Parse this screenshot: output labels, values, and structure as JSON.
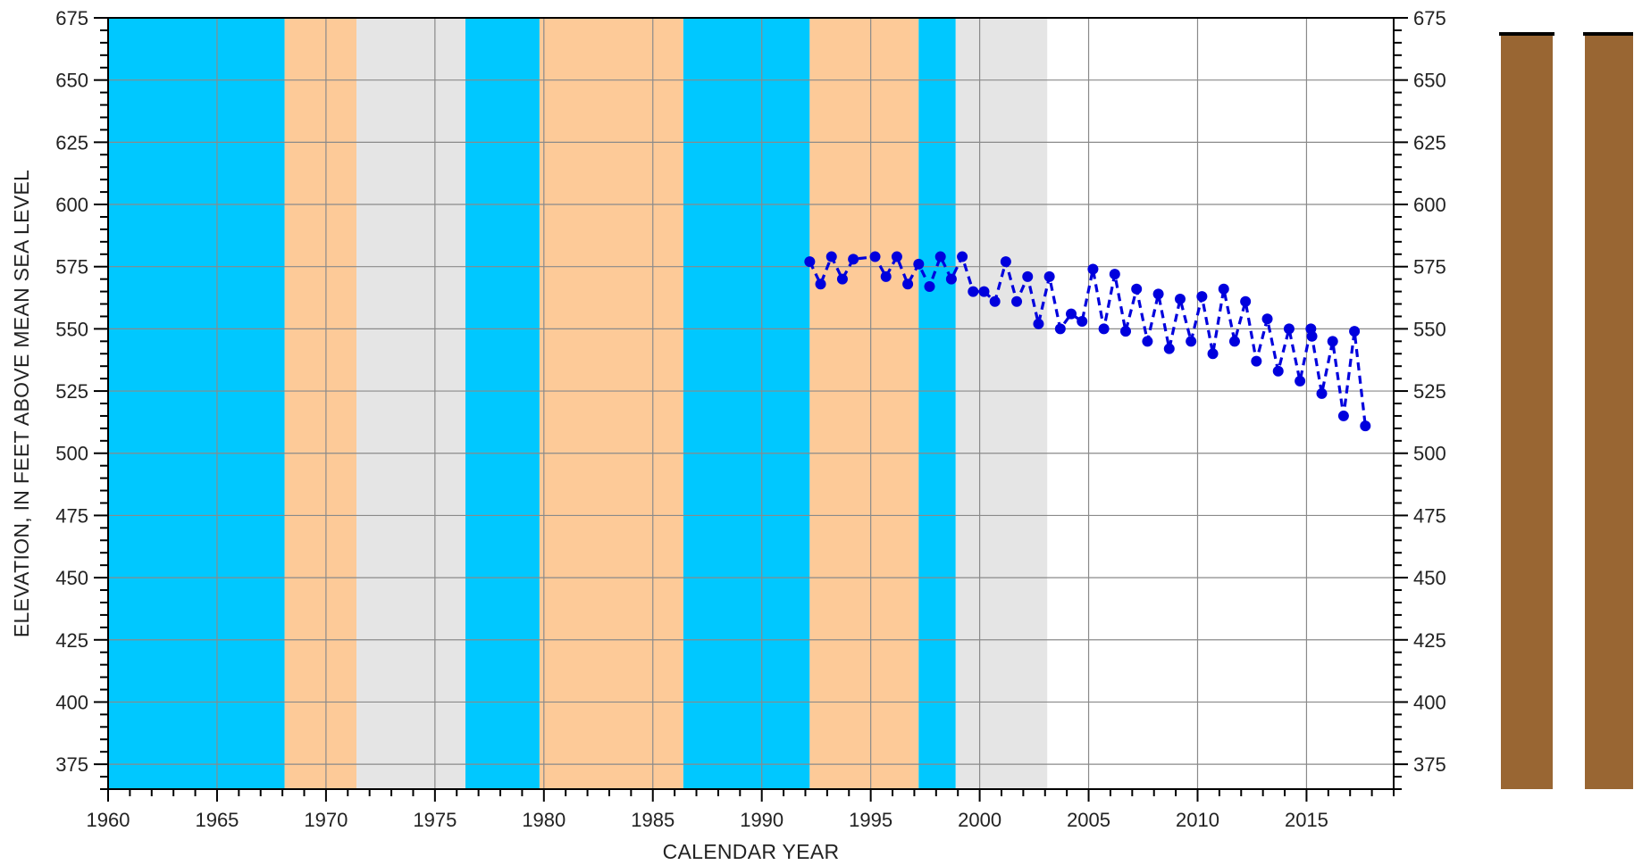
{
  "chart_data": {
    "type": "line",
    "title": "",
    "xlabel": "CALENDAR YEAR",
    "ylabel": "ELEVATION, IN FEET ABOVE MEAN SEA LEVEL",
    "xlim": [
      1960,
      2019
    ],
    "ylim": [
      365,
      675
    ],
    "x_ticks": [
      1960,
      1965,
      1970,
      1975,
      1980,
      1985,
      1990,
      1995,
      2000,
      2005,
      2010,
      2015
    ],
    "y_ticks": [
      375,
      400,
      425,
      450,
      475,
      500,
      525,
      550,
      575,
      600,
      625,
      650,
      675
    ],
    "grid": true,
    "right_axis_mirrors_left": true,
    "background_bands": [
      {
        "start": 1960.0,
        "end": 1968.1,
        "color": "#00c8ff"
      },
      {
        "start": 1968.1,
        "end": 1971.4,
        "color": "#fdca98"
      },
      {
        "start": 1971.4,
        "end": 1976.4,
        "color": "#e5e5e5"
      },
      {
        "start": 1976.4,
        "end": 1979.8,
        "color": "#00c8ff"
      },
      {
        "start": 1979.8,
        "end": 1986.4,
        "color": "#fdca98"
      },
      {
        "start": 1986.4,
        "end": 1992.2,
        "color": "#00c8ff"
      },
      {
        "start": 1992.2,
        "end": 1997.2,
        "color": "#fdca98"
      },
      {
        "start": 1997.2,
        "end": 1998.9,
        "color": "#00c8ff"
      },
      {
        "start": 1998.9,
        "end": 2003.1,
        "color": "#e5e5e5"
      }
    ],
    "series": [
      {
        "color": "#0000dd",
        "line_style": "dashed",
        "marker": "circle",
        "x": [
          1992.2,
          1992.7,
          1993.2,
          1993.7,
          1994.2,
          1995.2,
          1995.7,
          1996.2,
          1996.7,
          1997.2,
          1997.7,
          1998.2,
          1998.7,
          1999.2,
          1999.7,
          2000.2,
          2000.7,
          2001.2,
          2001.7,
          2002.2,
          2002.7,
          2003.2,
          2003.7,
          2004.2,
          2004.7,
          2005.2,
          2005.7,
          2006.2,
          2006.7,
          2007.2,
          2007.7,
          2008.2,
          2008.7,
          2009.2,
          2009.7,
          2010.2,
          2010.7,
          2011.2,
          2011.7,
          2012.2,
          2012.7,
          2013.2,
          2013.7,
          2014.2,
          2014.7,
          2015.2,
          2015.25,
          2015.7,
          2016.2,
          2016.7,
          2017.2,
          2017.7
        ],
        "y": [
          577,
          568,
          579,
          570,
          578,
          579,
          571,
          579,
          568,
          576,
          567,
          579,
          570,
          579,
          565,
          565,
          561,
          577,
          561,
          571,
          552,
          571,
          550,
          556,
          553,
          574,
          550,
          572,
          549,
          566,
          545,
          564,
          542,
          562,
          545,
          563,
          540,
          566,
          545,
          561,
          537,
          554,
          533,
          550,
          529,
          550,
          547,
          524,
          545,
          515,
          549,
          511
        ]
      }
    ],
    "side_panel": {
      "columns_color": "#996633",
      "cap_color": "#000000"
    }
  }
}
